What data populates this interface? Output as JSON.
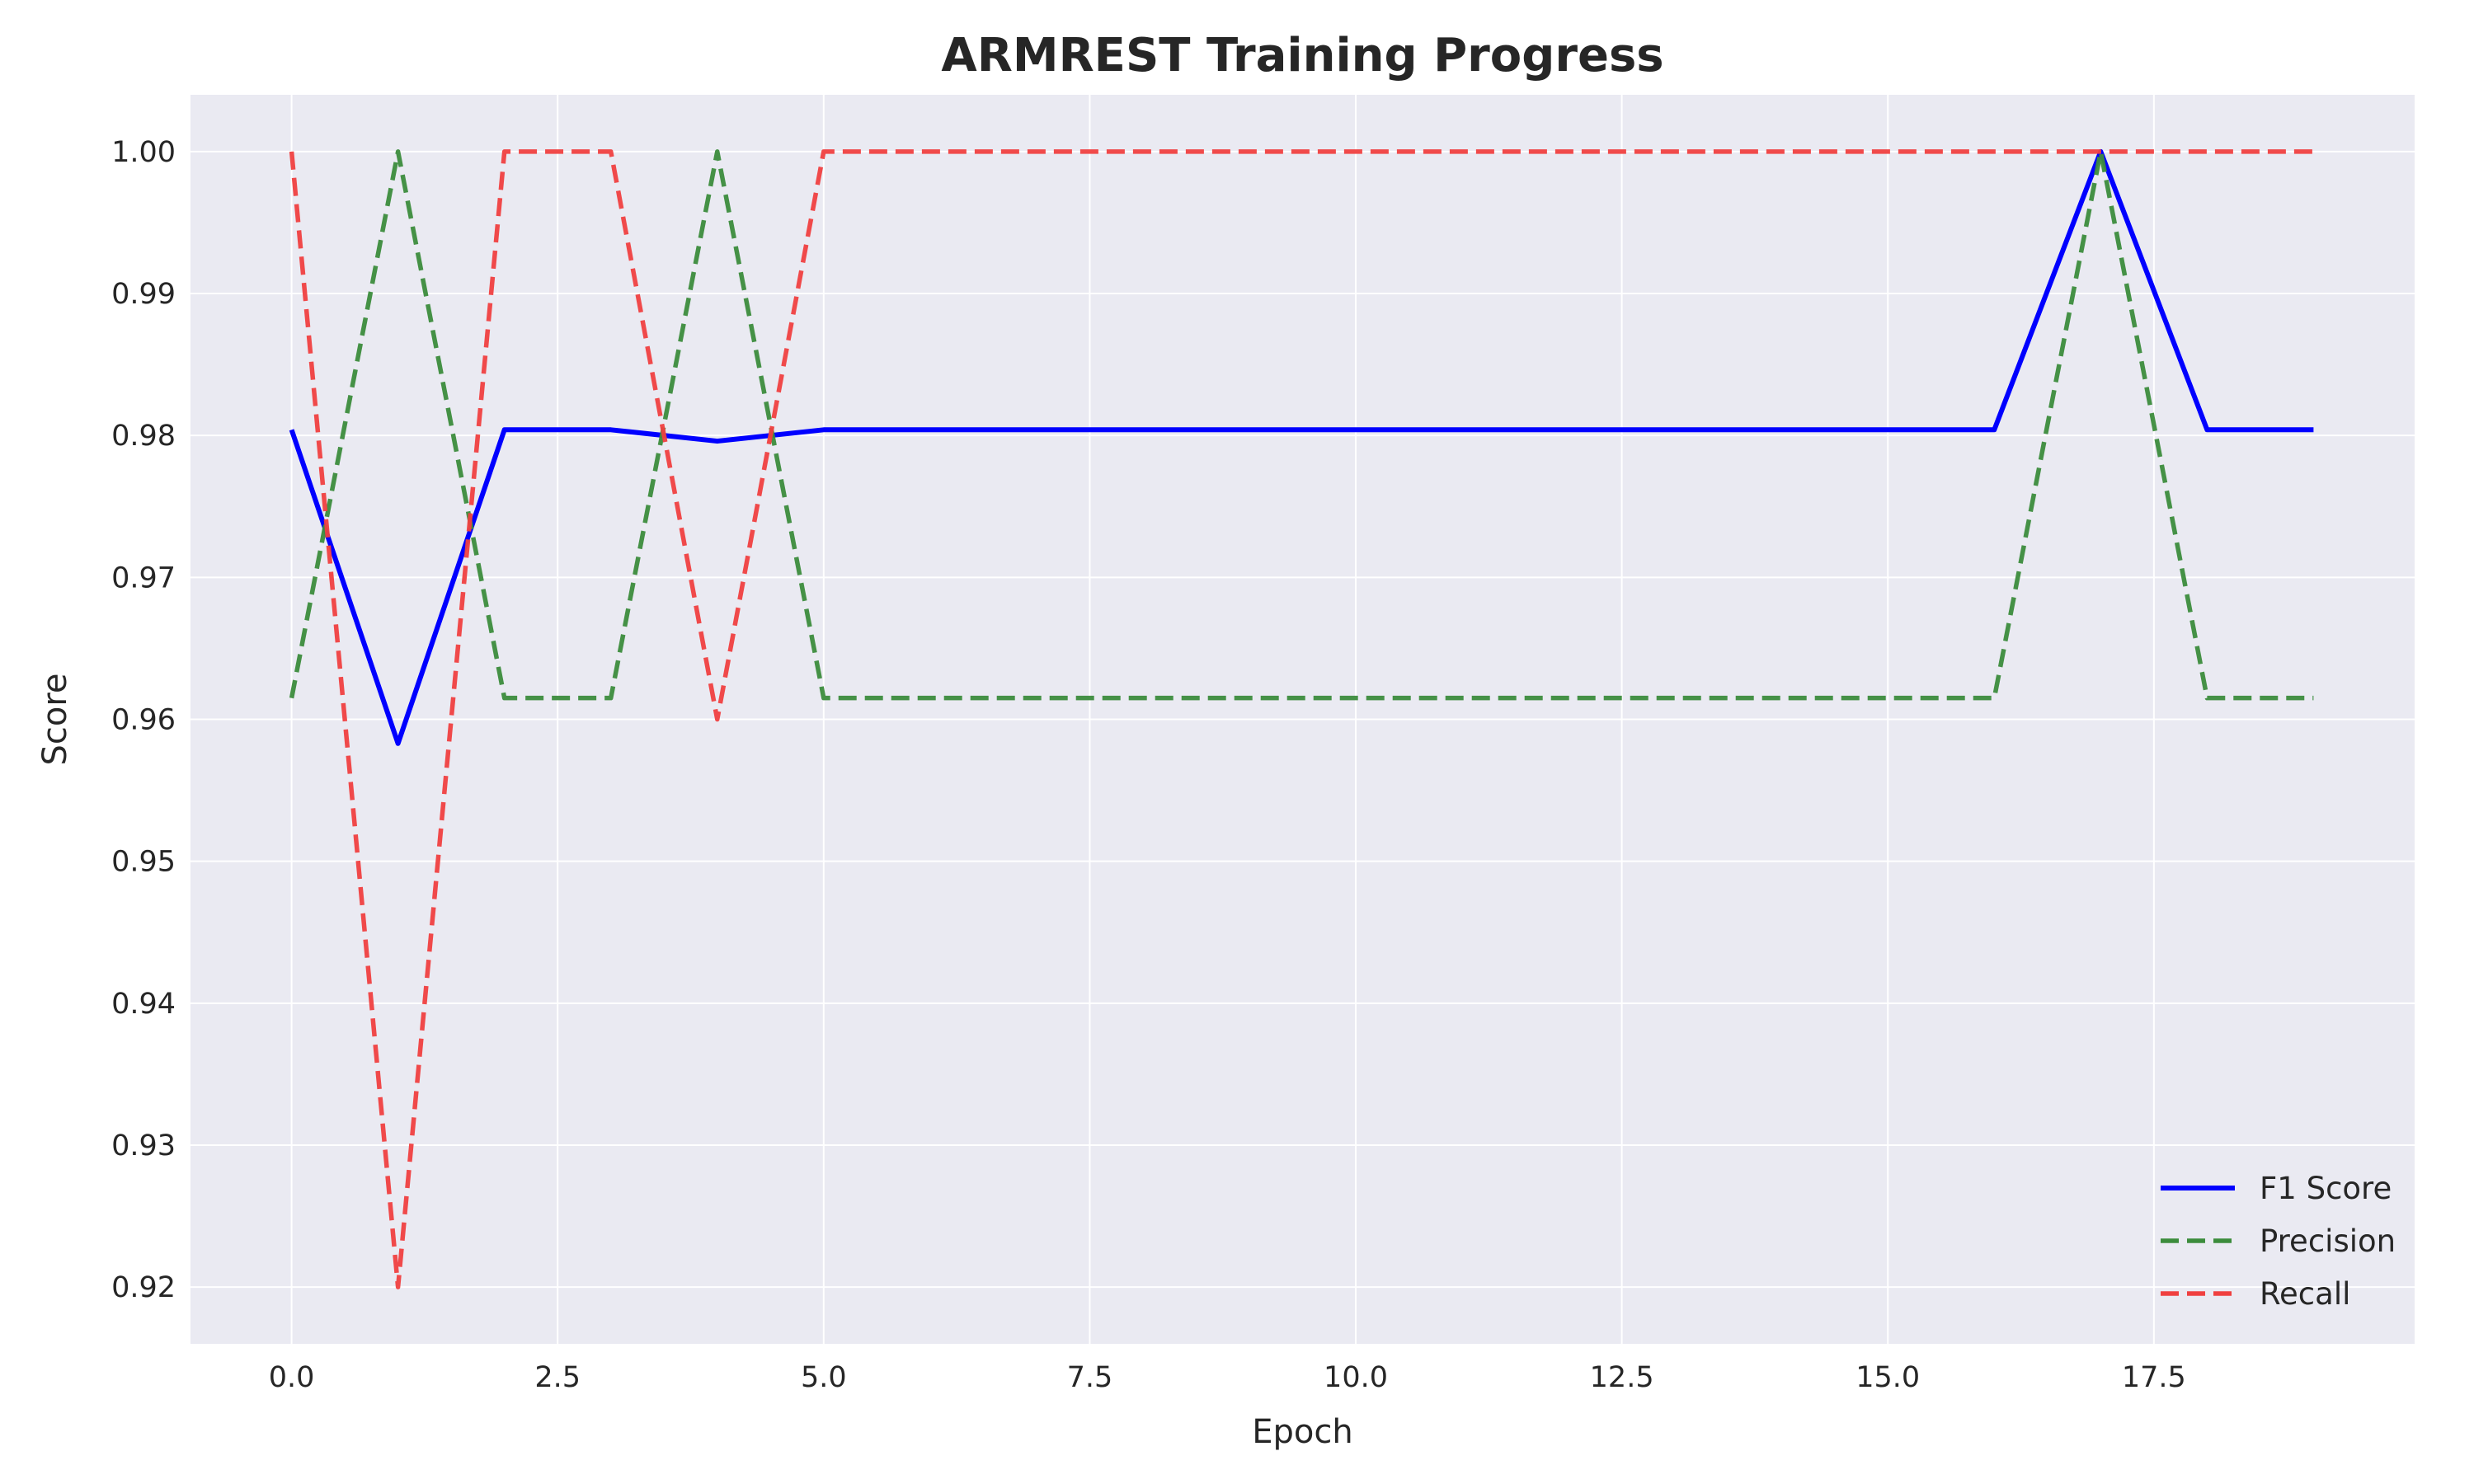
{
  "chart_data": {
    "type": "line",
    "title": "ARMREST Training Progress",
    "xlabel": "Epoch",
    "ylabel": "Score",
    "xlim": [
      -0.95,
      19.95
    ],
    "ylim": [
      0.916,
      1.004
    ],
    "xticks": [
      0.0,
      2.5,
      5.0,
      7.5,
      10.0,
      12.5,
      15.0,
      17.5
    ],
    "xtick_labels": [
      "0.0",
      "2.5",
      "5.0",
      "7.5",
      "10.0",
      "12.5",
      "15.0",
      "17.5"
    ],
    "yticks": [
      0.92,
      0.93,
      0.94,
      0.95,
      0.96,
      0.97,
      0.98,
      0.99,
      1.0
    ],
    "ytick_labels": [
      "0.92",
      "0.93",
      "0.94",
      "0.95",
      "0.96",
      "0.97",
      "0.98",
      "0.99",
      "1.00"
    ],
    "grid": true,
    "legend_position": "lower-right",
    "background_color": "#eaeaf2",
    "x": [
      0,
      1,
      2,
      3,
      4,
      5,
      6,
      7,
      8,
      9,
      10,
      11,
      12,
      13,
      14,
      15,
      16,
      17,
      18,
      19
    ],
    "series": [
      {
        "name": "F1 Score",
        "color": "#0000ff",
        "style": "solid",
        "values": [
          0.9804,
          0.9583,
          0.9804,
          0.9804,
          0.9796,
          0.9804,
          0.9804,
          0.9804,
          0.9804,
          0.9804,
          0.9804,
          0.9804,
          0.9804,
          0.9804,
          0.9804,
          0.9804,
          0.9804,
          1.0,
          0.9804,
          0.9804
        ]
      },
      {
        "name": "Precision",
        "color": "#3c8c3c",
        "style": "dashed",
        "values": [
          0.9615,
          1.0,
          0.9615,
          0.9615,
          1.0,
          0.9615,
          0.9615,
          0.9615,
          0.9615,
          0.9615,
          0.9615,
          0.9615,
          0.9615,
          0.9615,
          0.9615,
          0.9615,
          0.9615,
          1.0,
          0.9615,
          0.9615
        ]
      },
      {
        "name": "Recall",
        "color": "#f04040",
        "style": "dashed",
        "values": [
          1.0,
          0.92,
          1.0,
          1.0,
          0.96,
          1.0,
          1.0,
          1.0,
          1.0,
          1.0,
          1.0,
          1.0,
          1.0,
          1.0,
          1.0,
          1.0,
          1.0,
          1.0,
          1.0,
          1.0
        ]
      }
    ]
  }
}
